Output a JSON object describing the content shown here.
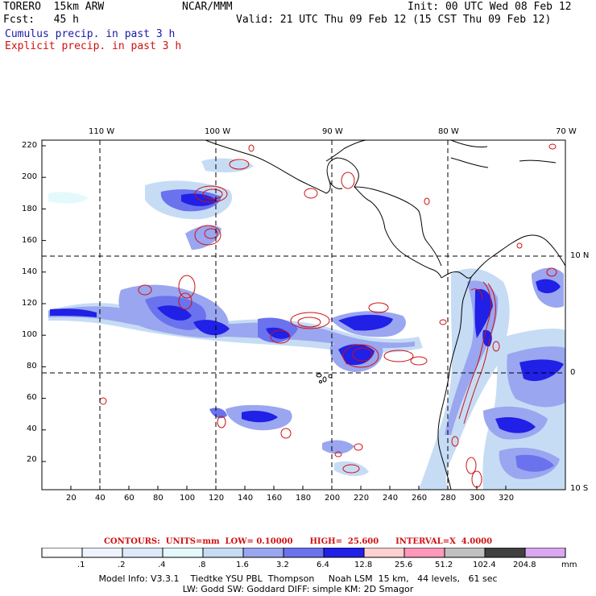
{
  "header": {
    "model": "TORERO  15km ARW",
    "org": "NCAR/MMM",
    "init": "Init: 00 UTC Wed 08 Feb 12",
    "fcst": "Fcst:   45 h",
    "valid": "Valid: 21 UTC Thu 09 Feb 12 (15 CST Thu 09 Feb 12)",
    "cumulus": "Cumulus precip. in past 3 h",
    "explicit": "Explicit precip. in past 3 h"
  },
  "map": {
    "top_labels": [
      "110 W",
      "100 W",
      "90 W",
      "80 W",
      "70 W"
    ],
    "right_labels": [
      "10 N",
      "0",
      "10 S"
    ],
    "left_ticks": [
      "220",
      "200",
      "180",
      "160",
      "140",
      "120",
      "100",
      "80",
      "60",
      "40",
      "20"
    ],
    "bottom_ticks": [
      "20",
      "40",
      "60",
      "80",
      "100",
      "120",
      "140",
      "160",
      "180",
      "200",
      "220",
      "240",
      "260",
      "280",
      "300",
      "320"
    ],
    "land_color": "#000000",
    "contour_color": "#d01010"
  },
  "contours": {
    "text": "CONTOURS:  UNITS=mm  LOW= 0.10000      HIGH=  25.600      INTERVAL=X  4.0000"
  },
  "colorbar": {
    "labels": [
      ".1",
      ".2",
      ".4",
      ".8",
      "1.6",
      "3.2",
      "6.4",
      "12.8",
      "25.6",
      "51.2",
      "102.4",
      "204.8"
    ],
    "unit": "mm",
    "colors": [
      "#ffffff",
      "#eef4ff",
      "#dde9fb",
      "#e4f9fb",
      "#c6dcf5",
      "#9aa6ef",
      "#6b72ee",
      "#2020e6",
      "#ffd0d0",
      "#ff99bb",
      "#c0c0c0",
      "#404040",
      "#d9a8f0"
    ]
  },
  "footer": {
    "line1": "Model Info: V3.3.1    Tiedtke YSU PBL  Thompson     Noah LSM  15 km,   44 levels,   61 sec",
    "line2": "LW: Godd SW: Goddard DIFF: simple KM: 2D Smagor"
  }
}
